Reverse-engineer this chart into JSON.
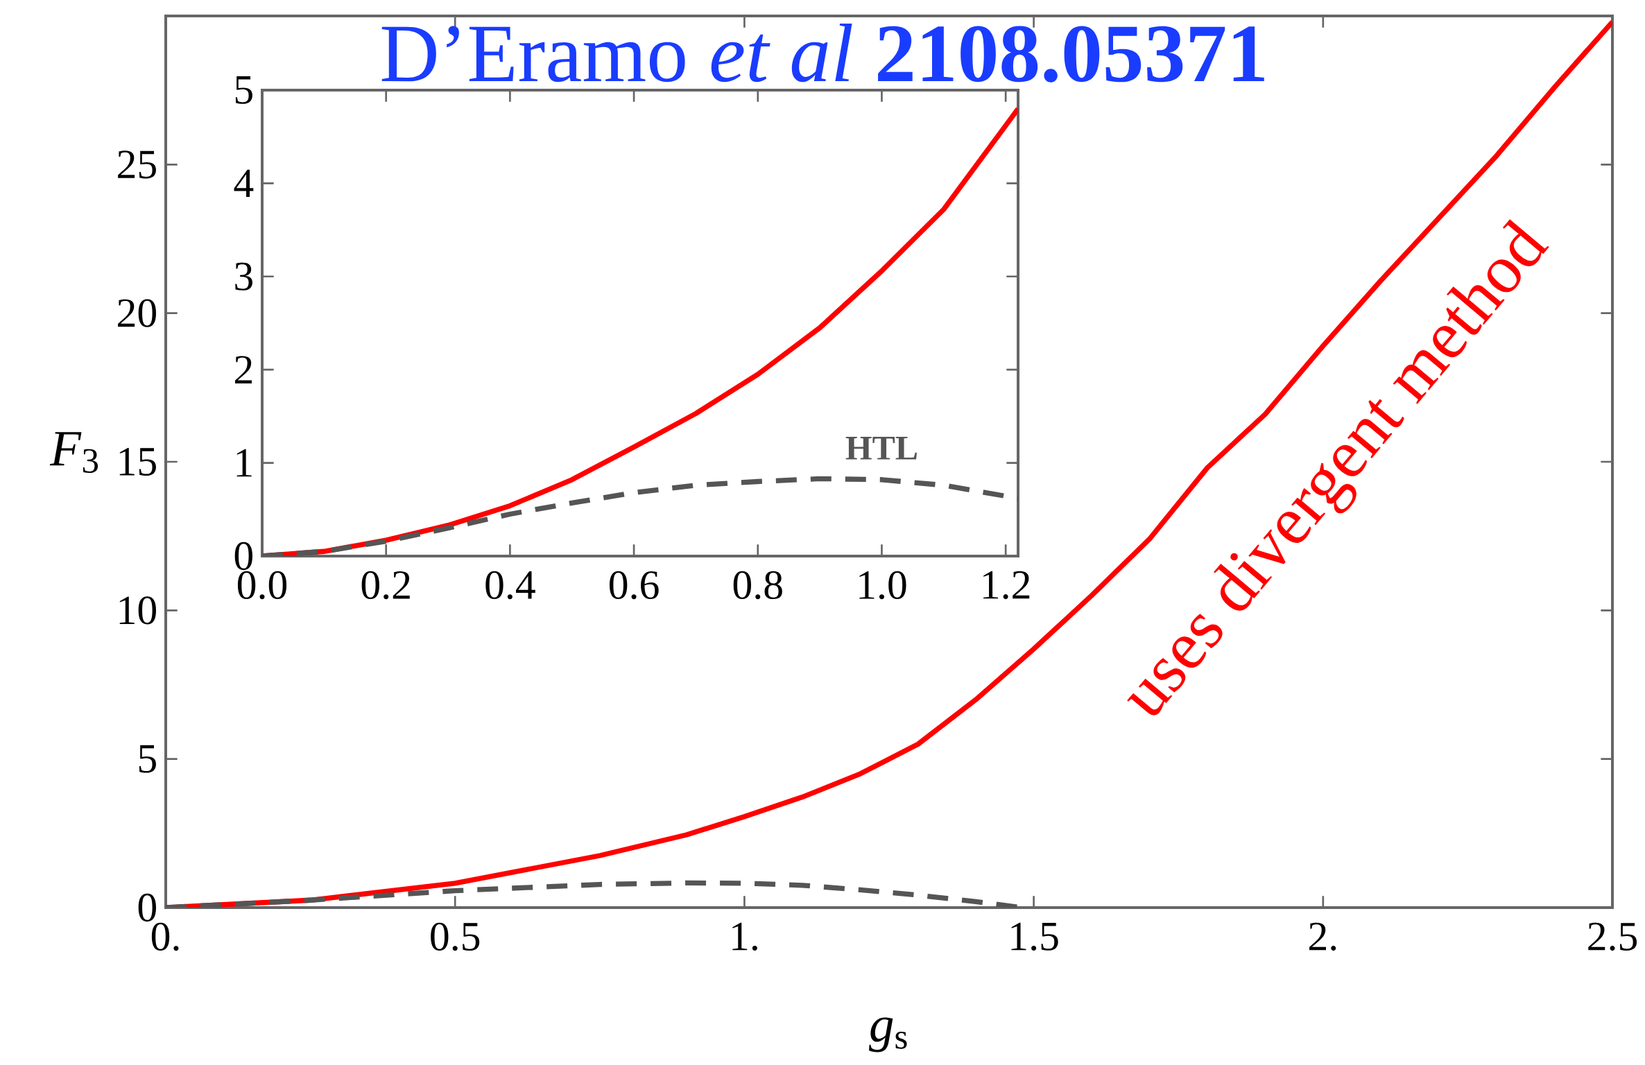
{
  "chart_data": [
    {
      "type": "line",
      "title": "D’Eramo *et al* **2108.05371**",
      "xlabel": "*g*$_{s}$",
      "ylabel": "*F*$_{3}$",
      "xlim": [
        0,
        2.5
      ],
      "ylim": [
        0,
        30
      ],
      "xticks": [
        {
          "value": 0,
          "label": "0."
        },
        {
          "value": 0.5,
          "label": "0.5"
        },
        {
          "value": 1,
          "label": "1."
        },
        {
          "value": 1.5,
          "label": "1.5"
        },
        {
          "value": 2,
          "label": "2."
        },
        2.5
      ],
      "yticks": [
        0,
        5,
        10,
        15,
        20,
        25
      ],
      "annotations": [
        "uses divergent method"
      ],
      "series": [
        {
          "color": "#ff0000",
          "line_style": "solid",
          "x": [
            0,
            0.25,
            0.5,
            0.75,
            0.9,
            1.0,
            1.1,
            1.2,
            1.3,
            1.4,
            1.5,
            1.6,
            1.7,
            1.8,
            1.9,
            2.0,
            2.1,
            2.2,
            2.3,
            2.4,
            2.5
          ],
          "values": [
            0,
            0.25,
            0.82,
            1.75,
            2.45,
            3.06,
            3.72,
            4.5,
            5.5,
            7.0,
            8.7,
            10.5,
            12.4,
            14.8,
            16.6,
            18.9,
            21.1,
            23.2,
            25.3,
            27.6,
            29.8
          ]
        },
        {
          "color": "#555555",
          "line_style": "dashed",
          "x": [
            0,
            0.25,
            0.5,
            0.75,
            0.9,
            1.0,
            1.1,
            1.2,
            1.3,
            1.4,
            1.48
          ],
          "values": [
            0,
            0.25,
            0.57,
            0.78,
            0.83,
            0.82,
            0.75,
            0.6,
            0.42,
            0.2,
            0
          ]
        }
      ]
    },
    {
      "type": "line",
      "xlim": [
        0,
        1.22
      ],
      "ylim": [
        0,
        5
      ],
      "xticks": [
        {
          "value": 0,
          "label": "0.0"
        },
        0.2,
        0.4,
        0.6,
        0.8,
        {
          "value": 1,
          "label": "1.0"
        },
        1.2
      ],
      "yticks": [
        0,
        1,
        2,
        3,
        4,
        5
      ],
      "series": [
        {
          "color": "#ff0000",
          "line_style": "solid",
          "x": [
            0,
            0.1,
            0.2,
            0.3,
            0.4,
            0.5,
            0.6,
            0.7,
            0.8,
            0.9,
            1.0,
            1.1,
            1.2,
            1.22
          ],
          "values": [
            0,
            0.05,
            0.17,
            0.33,
            0.54,
            0.82,
            1.17,
            1.53,
            1.95,
            2.45,
            3.06,
            3.72,
            4.62,
            4.8
          ]
        },
        {
          "name": "HTL",
          "color": "#555555",
          "line_style": "dashed",
          "x": [
            0,
            0.1,
            0.2,
            0.3,
            0.4,
            0.5,
            0.6,
            0.7,
            0.8,
            0.9,
            1.0,
            1.1,
            1.22
          ],
          "values": [
            0,
            0.05,
            0.16,
            0.3,
            0.45,
            0.57,
            0.68,
            0.76,
            0.8,
            0.83,
            0.82,
            0.76,
            0.62
          ]
        }
      ]
    }
  ]
}
